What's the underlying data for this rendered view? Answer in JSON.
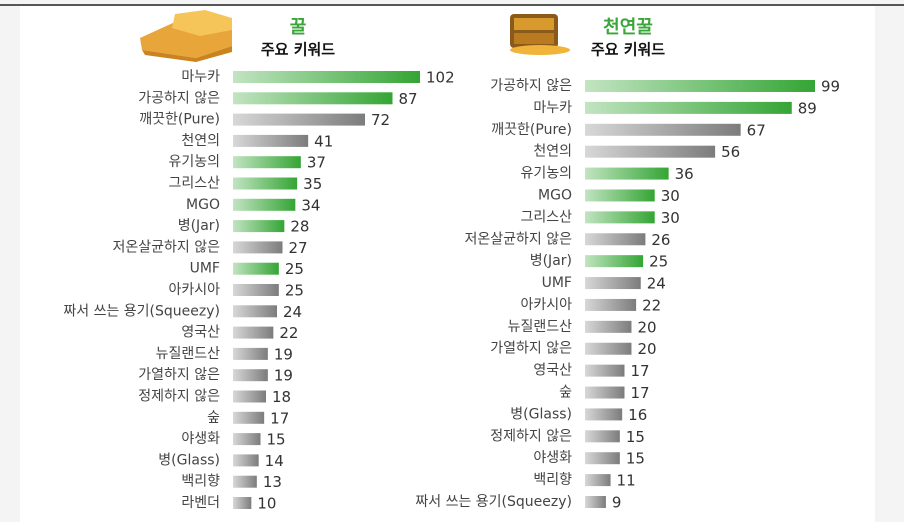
{
  "chart_data": [
    {
      "type": "bar",
      "orientation": "horizontal",
      "title": "꿀",
      "subtitle": "주요 키워드",
      "categories": [
        "마누카",
        "가공하지 않은",
        "깨끗한(Pure)",
        "천연의",
        "유기농의",
        "그리스산",
        "MGO",
        "병(Jar)",
        "저온살균하지 않은",
        "UMF",
        "아카시아",
        "짜서 쓰는 용기(Squeezy)",
        "영국산",
        "뉴질랜드산",
        "가열하지 않은",
        "정제하지 않은",
        "숲",
        "야생화",
        "병(Glass)",
        "백리향",
        "라벤더"
      ],
      "values": [
        102,
        87,
        72,
        41,
        37,
        35,
        34,
        28,
        27,
        25,
        25,
        24,
        22,
        19,
        19,
        18,
        17,
        15,
        14,
        13,
        10
      ],
      "colors": [
        "#34a534",
        "#34a534",
        "#7c7c7c",
        "#7c7c7c",
        "#34a534",
        "#34a534",
        "#34a534",
        "#34a534",
        "#7c7c7c",
        "#34a534",
        "#7c7c7c",
        "#7c7c7c",
        "#7c7c7c",
        "#7c7c7c",
        "#7c7c7c",
        "#7c7c7c",
        "#7c7c7c",
        "#7c7c7c",
        "#7c7c7c",
        "#7c7c7c",
        "#7c7c7c"
      ]
    },
    {
      "type": "bar",
      "orientation": "horizontal",
      "title": "천연꿀",
      "subtitle": "주요 키워드",
      "categories": [
        "가공하지 않은",
        "마누카",
        "깨끗한(Pure)",
        "천연의",
        "유기농의",
        "MGO",
        "그리스산",
        "저온살균하지 않은",
        "병(Jar)",
        "UMF",
        "아카시아",
        "뉴질랜드산",
        "가열하지 않은",
        "영국산",
        "숲",
        "병(Glass)",
        "정제하지 않은",
        "야생화",
        "백리향",
        "짜서 쓰는 용기(Squeezy)"
      ],
      "values": [
        99,
        89,
        67,
        56,
        36,
        30,
        30,
        26,
        25,
        24,
        22,
        20,
        20,
        17,
        17,
        16,
        15,
        15,
        11,
        9
      ],
      "colors": [
        "#34a534",
        "#34a534",
        "#7c7c7c",
        "#7c7c7c",
        "#34a534",
        "#34a534",
        "#34a534",
        "#7c7c7c",
        "#34a534",
        "#7c7c7c",
        "#7c7c7c",
        "#7c7c7c",
        "#7c7c7c",
        "#7c7c7c",
        "#7c7c7c",
        "#7c7c7c",
        "#7c7c7c",
        "#7c7c7c",
        "#7c7c7c",
        "#7c7c7c"
      ]
    }
  ]
}
